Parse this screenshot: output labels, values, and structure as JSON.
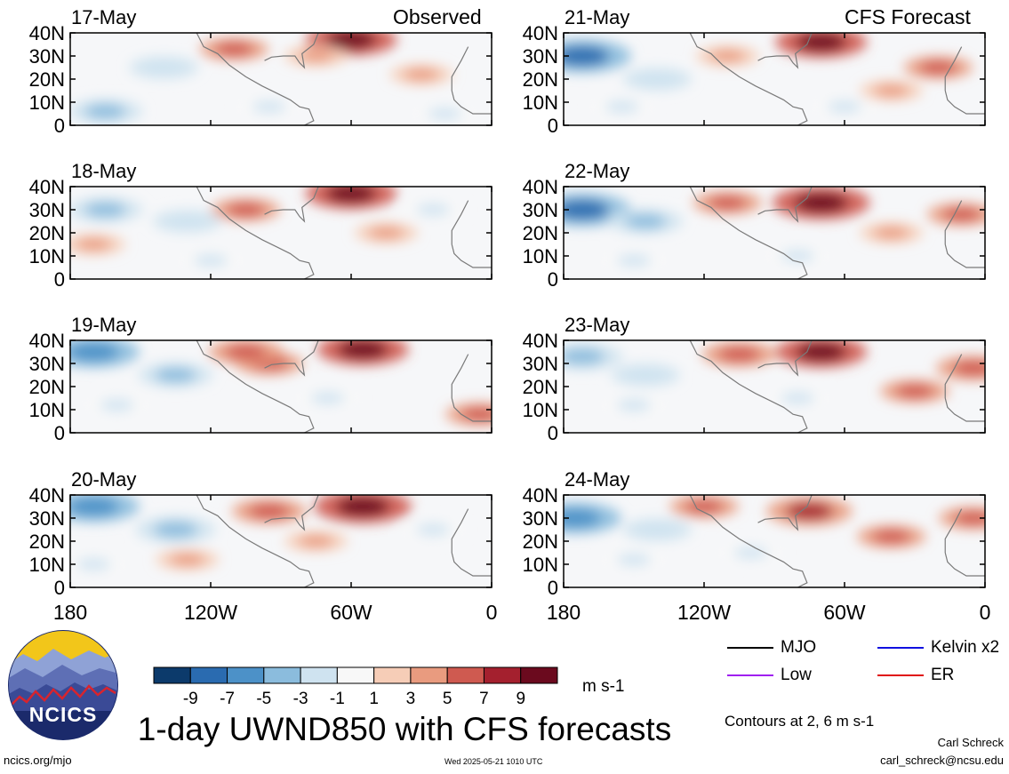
{
  "title": "1-day UWND850 with CFS forecasts",
  "website": "ncics.org/mjo",
  "timestamp": "Wed 2025-05-21 1010 UTC",
  "author": "Carl Schreck",
  "email": "carl_schreck@ncsu.edu",
  "contour_note": "Contours at 2, 6 m s-1",
  "units": "m s-1",
  "logo_text": "NCICS",
  "colors": {
    "negative_dark": "#08306b",
    "positive_dark": "#67000d",
    "mjo": "#000000",
    "kelvin": "#1010e0",
    "low": "#a020f0",
    "er": "#e01010"
  },
  "colorbar": {
    "labels": [
      "-9",
      "-7",
      "-5",
      "-3",
      "-1",
      "1",
      "3",
      "5",
      "7",
      "9"
    ],
    "colors": [
      "#0c3a6b",
      "#2a6bb0",
      "#4c91c8",
      "#8bbcdd",
      "#cfe3f0",
      "#f8f8f8",
      "#f6cdb7",
      "#e99b7f",
      "#cf5a50",
      "#a4202e",
      "#6b0a1e"
    ]
  },
  "legend": [
    {
      "label": "MJO",
      "color": "#000000"
    },
    {
      "label": "Kelvin x2",
      "color": "#1010e0"
    },
    {
      "label": "Low",
      "color": "#a020f0"
    },
    {
      "label": "ER",
      "color": "#e01010"
    }
  ],
  "chart_data": {
    "type": "heatmap",
    "field": "850-hPa zonal wind anomaly",
    "x_tick_labels": [
      "180",
      "120W",
      "60W",
      "0"
    ],
    "x_ticks_lon": [
      -180,
      -120,
      -60,
      0
    ],
    "xlim": [
      -180,
      0
    ],
    "y_tick_labels": [
      "40N",
      "30N",
      "20N",
      "10N",
      "0"
    ],
    "y_ticks_lat": [
      40,
      30,
      20,
      10,
      0
    ],
    "ylim": [
      0,
      40
    ],
    "column_headers": {
      "left": "Observed",
      "right": "CFS Forecast"
    },
    "panels": [
      {
        "date": "17-May",
        "source": "Observed",
        "column": 0,
        "row": 0,
        "blobs": [
          {
            "lon": -140,
            "lat": 25,
            "v": -4
          },
          {
            "lon": -165,
            "lat": 6,
            "v": -5
          },
          {
            "lon": -95,
            "lat": 8,
            "v": -3
          },
          {
            "lon": -60,
            "lat": 37,
            "v": 8
          },
          {
            "lon": -75,
            "lat": 30,
            "v": 3
          },
          {
            "lon": -110,
            "lat": 33,
            "v": 4
          },
          {
            "lon": -30,
            "lat": 22,
            "v": 3
          },
          {
            "lon": -20,
            "lat": 5,
            "v": -3
          }
        ]
      },
      {
        "date": "18-May",
        "source": "Observed",
        "column": 0,
        "row": 1,
        "blobs": [
          {
            "lon": -165,
            "lat": 30,
            "v": -5
          },
          {
            "lon": -130,
            "lat": 25,
            "v": -4
          },
          {
            "lon": -60,
            "lat": 37,
            "v": 8
          },
          {
            "lon": -105,
            "lat": 30,
            "v": 4
          },
          {
            "lon": -170,
            "lat": 15,
            "v": 3
          },
          {
            "lon": -45,
            "lat": 20,
            "v": 3
          },
          {
            "lon": -120,
            "lat": 8,
            "v": -3
          },
          {
            "lon": -25,
            "lat": 30,
            "v": -3
          }
        ]
      },
      {
        "date": "19-May",
        "source": "Observed",
        "column": 0,
        "row": 2,
        "blobs": [
          {
            "lon": -170,
            "lat": 35,
            "v": -8
          },
          {
            "lon": -135,
            "lat": 25,
            "v": -5
          },
          {
            "lon": -95,
            "lat": 30,
            "v": 4
          },
          {
            "lon": -55,
            "lat": 36,
            "v": 8
          },
          {
            "lon": -105,
            "lat": 35,
            "v": 5
          },
          {
            "lon": -160,
            "lat": 12,
            "v": -3
          },
          {
            "lon": -5,
            "lat": 8,
            "v": 4
          },
          {
            "lon": -70,
            "lat": 15,
            "v": -3
          }
        ]
      },
      {
        "date": "20-May",
        "source": "Observed",
        "column": 0,
        "row": 3,
        "blobs": [
          {
            "lon": -170,
            "lat": 35,
            "v": -8
          },
          {
            "lon": -135,
            "lat": 25,
            "v": -6
          },
          {
            "lon": -95,
            "lat": 33,
            "v": 5
          },
          {
            "lon": -55,
            "lat": 35,
            "v": 9
          },
          {
            "lon": -130,
            "lat": 12,
            "v": 3
          },
          {
            "lon": -25,
            "lat": 25,
            "v": -3
          },
          {
            "lon": -170,
            "lat": 10,
            "v": -3
          },
          {
            "lon": -75,
            "lat": 20,
            "v": 3
          }
        ]
      },
      {
        "date": "21-May",
        "source": "CFS Forecast",
        "column": 1,
        "row": 0,
        "blobs": [
          {
            "lon": -172,
            "lat": 30,
            "v": -9
          },
          {
            "lon": -140,
            "lat": 20,
            "v": -4
          },
          {
            "lon": -70,
            "lat": 36,
            "v": 8
          },
          {
            "lon": -110,
            "lat": 30,
            "v": 3
          },
          {
            "lon": -20,
            "lat": 25,
            "v": 4
          },
          {
            "lon": -60,
            "lat": 8,
            "v": -3
          },
          {
            "lon": -155,
            "lat": 8,
            "v": -3
          },
          {
            "lon": -40,
            "lat": 15,
            "v": 3
          }
        ]
      },
      {
        "date": "22-May",
        "source": "CFS Forecast",
        "column": 1,
        "row": 1,
        "blobs": [
          {
            "lon": -172,
            "lat": 30,
            "v": -9
          },
          {
            "lon": -145,
            "lat": 25,
            "v": -5
          },
          {
            "lon": -70,
            "lat": 33,
            "v": 9
          },
          {
            "lon": -110,
            "lat": 33,
            "v": 4
          },
          {
            "lon": -40,
            "lat": 20,
            "v": 3
          },
          {
            "lon": -10,
            "lat": 28,
            "v": 4
          },
          {
            "lon": -150,
            "lat": 8,
            "v": -3
          },
          {
            "lon": -80,
            "lat": 10,
            "v": -3
          }
        ]
      },
      {
        "date": "23-May",
        "source": "CFS Forecast",
        "column": 1,
        "row": 2,
        "blobs": [
          {
            "lon": -172,
            "lat": 33,
            "v": -6
          },
          {
            "lon": -145,
            "lat": 25,
            "v": -4
          },
          {
            "lon": -70,
            "lat": 35,
            "v": 8
          },
          {
            "lon": -105,
            "lat": 34,
            "v": 5
          },
          {
            "lon": -30,
            "lat": 18,
            "v": 4
          },
          {
            "lon": -5,
            "lat": 28,
            "v": 5
          },
          {
            "lon": -150,
            "lat": 12,
            "v": -3
          },
          {
            "lon": -80,
            "lat": 15,
            "v": -3
          }
        ]
      },
      {
        "date": "24-May",
        "source": "CFS Forecast",
        "column": 1,
        "row": 3,
        "blobs": [
          {
            "lon": -175,
            "lat": 30,
            "v": -8
          },
          {
            "lon": -140,
            "lat": 25,
            "v": -4
          },
          {
            "lon": -75,
            "lat": 33,
            "v": 7
          },
          {
            "lon": -120,
            "lat": 35,
            "v": 4
          },
          {
            "lon": -40,
            "lat": 22,
            "v": 4
          },
          {
            "lon": -5,
            "lat": 30,
            "v": 4
          },
          {
            "lon": -150,
            "lat": 12,
            "v": -3
          },
          {
            "lon": -100,
            "lat": 15,
            "v": -3
          }
        ]
      }
    ]
  }
}
